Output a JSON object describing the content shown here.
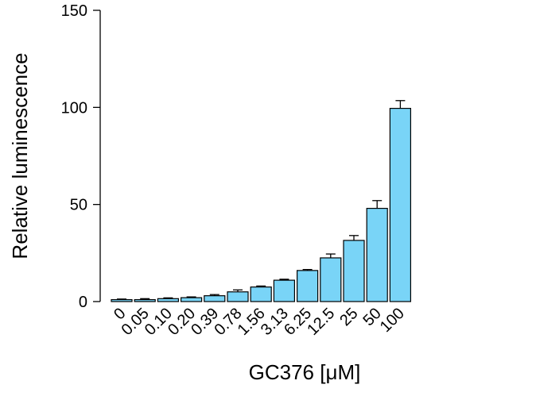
{
  "chart_data": {
    "type": "bar",
    "title": "",
    "xlabel": "GC376 [μM]",
    "ylabel": "Relative luminescence",
    "ylim": [
      0,
      150
    ],
    "yticks": [
      0,
      50,
      100,
      150
    ],
    "categories": [
      "0",
      "0.05",
      "0.10",
      "0.20",
      "0.39",
      "0.78",
      "1.56",
      "3.13",
      "6.25",
      "12.5",
      "25",
      "50",
      "100"
    ],
    "series": [
      {
        "values": [
          1,
          1,
          1.5,
          2,
          3,
          5,
          7.5,
          11,
          16,
          22.5,
          31.5,
          48,
          99.5
        ],
        "errors": [
          0.3,
          0.5,
          0.4,
          0.4,
          0.6,
          1,
          0.5,
          0.5,
          0.5,
          2,
          2.5,
          4,
          4
        ],
        "color": "#79d4f7"
      }
    ],
    "grid": false,
    "legend": "none"
  }
}
